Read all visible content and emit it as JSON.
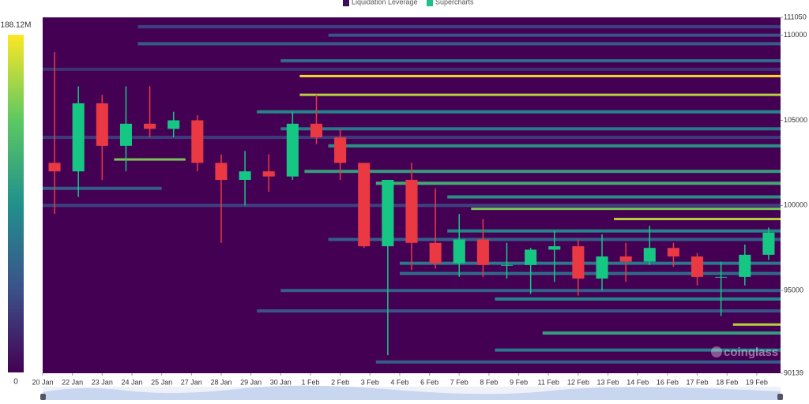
{
  "chart_data": {
    "type": "liquidation-heatmap",
    "legend": [
      "Liquidation Leverage",
      "Supercharts"
    ],
    "legend_colors": [
      "#3b0f5c",
      "#21c08b"
    ],
    "watermark": "coinglass",
    "xlim": [
      0,
      31
    ],
    "xticks": [
      {
        "value": 0,
        "label": "20 Jan"
      },
      {
        "value": 1.25,
        "label": "22 Jan"
      },
      {
        "value": 2.5,
        "label": "23 Jan"
      },
      {
        "value": 3.75,
        "label": "24 Jan"
      },
      {
        "value": 5,
        "label": "25 Jan"
      },
      {
        "value": 6.25,
        "label": "27 Jan"
      },
      {
        "value": 7.5,
        "label": "28 Jan"
      },
      {
        "value": 8.75,
        "label": "29 Jan"
      },
      {
        "value": 10,
        "label": "30 Jan"
      },
      {
        "value": 11.25,
        "label": "1 Feb"
      },
      {
        "value": 12.5,
        "label": "2 Feb"
      },
      {
        "value": 13.75,
        "label": "3 Feb"
      },
      {
        "value": 15,
        "label": "4 Feb"
      },
      {
        "value": 16.25,
        "label": "6 Feb"
      },
      {
        "value": 17.5,
        "label": "7 Feb"
      },
      {
        "value": 18.75,
        "label": "8 Feb"
      },
      {
        "value": 20,
        "label": "9 Feb"
      },
      {
        "value": 21.25,
        "label": "11 Feb"
      },
      {
        "value": 22.5,
        "label": "12 Feb"
      },
      {
        "value": 23.75,
        "label": "13 Feb"
      },
      {
        "value": 25,
        "label": "14 Feb"
      },
      {
        "value": 26.25,
        "label": "16 Feb"
      },
      {
        "value": 27.5,
        "label": "17 Feb"
      },
      {
        "value": 28.75,
        "label": "18 Feb"
      },
      {
        "value": 30,
        "label": "19 Feb"
      }
    ],
    "ylim": [
      90139,
      111050
    ],
    "yticks": [
      90139,
      95000,
      100000,
      105000,
      110000,
      111050
    ],
    "clim": [
      0,
      188.12
    ],
    "colorbar_ticks": [
      0,
      {
        "value": 188.12,
        "label": "188.12M"
      }
    ],
    "colormap": [
      "#440154",
      "#3b528b",
      "#21918c",
      "#5ec962",
      "#fde725"
    ],
    "heatmap": {
      "prices": [
        110500,
        110000,
        109500,
        108500,
        107600,
        106500,
        105500,
        104500,
        103500,
        102700,
        102000,
        101300,
        101000,
        100500,
        99800,
        99200,
        98500,
        98000,
        96600,
        96000,
        95000,
        94500,
        93800,
        93000,
        92500,
        91500,
        90800,
        108000,
        104000,
        100000
      ],
      "start": [
        4,
        12,
        4,
        10,
        10.8,
        10.8,
        9,
        10,
        12,
        3,
        11,
        14,
        0,
        17,
        18,
        24,
        17,
        12,
        15,
        15,
        10,
        19,
        9,
        29,
        21,
        19,
        14,
        0,
        0,
        0
      ],
      "end": [
        31,
        31,
        31,
        31,
        31,
        31,
        31,
        31,
        31,
        6,
        31,
        31,
        5,
        31,
        31,
        31,
        31,
        31,
        31,
        31,
        31,
        31,
        31,
        31,
        31,
        31,
        31,
        31,
        31,
        31
      ],
      "values": [
        40,
        50,
        60,
        70,
        188,
        170,
        90,
        80,
        100,
        150,
        110,
        120,
        60,
        100,
        150,
        170,
        90,
        60,
        80,
        70,
        60,
        90,
        50,
        170,
        110,
        80,
        60,
        30,
        35,
        40
      ]
    },
    "up_color": "#16c784",
    "down_color": "#ea3943",
    "candles": {
      "x": [
        0.5,
        1.5,
        2.5,
        3.5,
        4.5,
        5.5,
        6.5,
        7.5,
        8.5,
        9.5,
        10.5,
        11.5,
        12.5,
        13.5,
        14.5,
        15.5,
        16.5,
        17.5,
        18.5,
        19.5,
        20.5,
        21.5,
        22.5,
        23.5,
        24.5,
        25.5,
        26.5,
        27.5,
        28.5,
        29.5,
        30.5
      ],
      "open": [
        102500,
        102000,
        106000,
        103500,
        104800,
        104500,
        105000,
        102500,
        101500,
        102000,
        101700,
        104800,
        104000,
        102500,
        97600,
        101500,
        97800,
        96600,
        98000,
        96500,
        96500,
        97400,
        97600,
        95700,
        97000,
        96700,
        97500,
        97000,
        95800,
        95800,
        97100
      ],
      "high": [
        109000,
        107000,
        106500,
        107000,
        107000,
        105500,
        105300,
        103000,
        103200,
        103000,
        105500,
        106500,
        104500,
        102500,
        99000,
        102500,
        101000,
        99500,
        99200,
        97800,
        97500,
        98500,
        98000,
        98300,
        97800,
        98800,
        97800,
        97200,
        96700,
        97700,
        98700
      ],
      "low": [
        99500,
        100500,
        101500,
        102000,
        104000,
        104000,
        102000,
        97800,
        100000,
        100800,
        101500,
        103600,
        101500,
        97500,
        91200,
        96200,
        96300,
        95800,
        95800,
        95700,
        94800,
        95500,
        94700,
        95000,
        95500,
        96500,
        96400,
        95300,
        93500,
        95300,
        96800
      ],
      "close": [
        102000,
        106000,
        103500,
        104800,
        104500,
        105000,
        102500,
        101500,
        102000,
        101700,
        104800,
        104000,
        102500,
        97600,
        101500,
        97800,
        96600,
        98000,
        96500,
        96500,
        97400,
        97600,
        95700,
        97000,
        96700,
        97500,
        97000,
        95800,
        95800,
        97100,
        98400
      ]
    }
  }
}
